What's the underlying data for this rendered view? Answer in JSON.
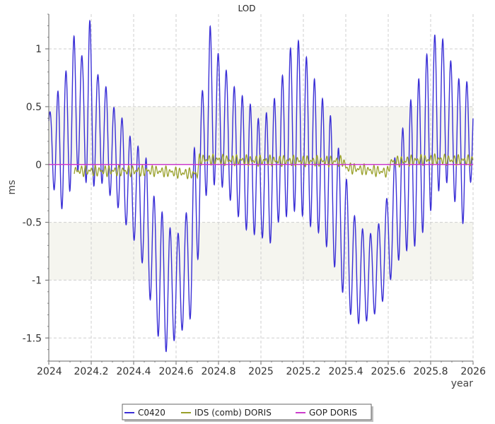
{
  "chart_data": {
    "type": "line",
    "title": "LOD",
    "xlabel": "year",
    "ylabel": "ms",
    "xlim": [
      2024,
      2026
    ],
    "ylim": [
      -1.7,
      1.3
    ],
    "x_ticks": [
      "2024",
      "2024.2",
      "2024.4",
      "2024.6",
      "2024.8",
      "2025",
      "2025.2",
      "2025.4",
      "2025.6",
      "2025.8",
      "2026"
    ],
    "y_ticks": [
      "-1.5",
      "-1",
      "-0.5",
      "0",
      "0.5",
      "1"
    ],
    "grid": true,
    "shaded_bands": [
      {
        "from": 0,
        "to": 0.5,
        "color": "#f5f5ef"
      },
      {
        "from": -1,
        "to": -0.5,
        "color": "#f5f5ef"
      }
    ],
    "legend_position": "bottom-center",
    "series": [
      {
        "name": "C0420",
        "color": "#3a2fd6",
        "x": [
          2024.0,
          2024.04,
          2024.08,
          2024.12,
          2024.16,
          2024.19,
          2024.23,
          2024.27,
          2024.31,
          2024.35,
          2024.38,
          2024.42,
          2024.46,
          2024.5,
          2024.54,
          2024.58,
          2024.62,
          2024.66,
          2024.69,
          2024.72,
          2024.76,
          2024.8,
          2024.84,
          2024.88,
          2024.92,
          2024.96,
          2025.0,
          2025.04,
          2025.08,
          2025.12,
          2025.16,
          2025.2,
          2025.24,
          2025.28,
          2025.32,
          2025.36,
          2025.4,
          2025.44,
          2025.48,
          2025.52,
          2025.56,
          2025.6,
          2025.64,
          2025.68,
          2025.72,
          2025.76,
          2025.8,
          2025.84,
          2025.88,
          2025.92,
          2025.96,
          2026.0
        ],
        "max": [
          0.43,
          0.62,
          0.8,
          1.12,
          0.92,
          1.29,
          0.78,
          0.67,
          0.48,
          0.39,
          0.25,
          0.16,
          0.05,
          -0.31,
          -0.43,
          -0.58,
          -0.6,
          -0.34,
          0.22,
          0.58,
          1.2,
          0.95,
          0.8,
          0.65,
          0.58,
          0.5,
          0.35,
          0.5,
          0.62,
          0.9,
          1.12,
          1.0,
          0.8,
          0.6,
          0.48,
          0.18,
          -0.1,
          -0.44,
          -0.56,
          -0.6,
          -0.5,
          -0.25,
          0.15,
          0.38,
          0.65,
          0.8,
          1.08,
          1.16,
          0.98,
          0.75,
          0.72,
          0.7
        ],
        "min": [
          0.1,
          -0.42,
          -0.35,
          -0.1,
          0.0,
          -0.3,
          -0.1,
          -0.22,
          -0.32,
          -0.45,
          -0.6,
          -0.7,
          -1.0,
          -1.38,
          -1.65,
          -1.55,
          -1.45,
          -1.37,
          -1.2,
          -0.35,
          -0.2,
          -0.15,
          -0.25,
          -0.4,
          -0.55,
          -0.6,
          -0.62,
          -0.7,
          -0.5,
          -0.45,
          -0.4,
          -0.45,
          -0.55,
          -0.6,
          -0.75,
          -0.95,
          -1.2,
          -1.37,
          -1.38,
          -1.32,
          -1.25,
          -1.05,
          -0.85,
          -0.75,
          -0.72,
          -0.6,
          -0.4,
          -0.22,
          -0.15,
          -0.35,
          -0.55,
          0.0
        ]
      },
      {
        "name": "IDS (comb) DORIS",
        "color": "#99a02a",
        "x": [
          2024.5,
          2024.7,
          2024.71,
          2025.0,
          2025.39,
          2025.4,
          2025.6,
          2025.61,
          2025.8,
          2026.0
        ],
        "values": [
          -0.1,
          -0.15,
          0.08,
          0.06,
          0.05,
          -0.05,
          -0.12,
          0.04,
          0.08,
          0.06
        ]
      },
      {
        "name": "GOP DORIS",
        "color": "#cc3ccc",
        "x": [
          2024,
          2026
        ],
        "values": [
          0,
          0
        ]
      }
    ]
  }
}
